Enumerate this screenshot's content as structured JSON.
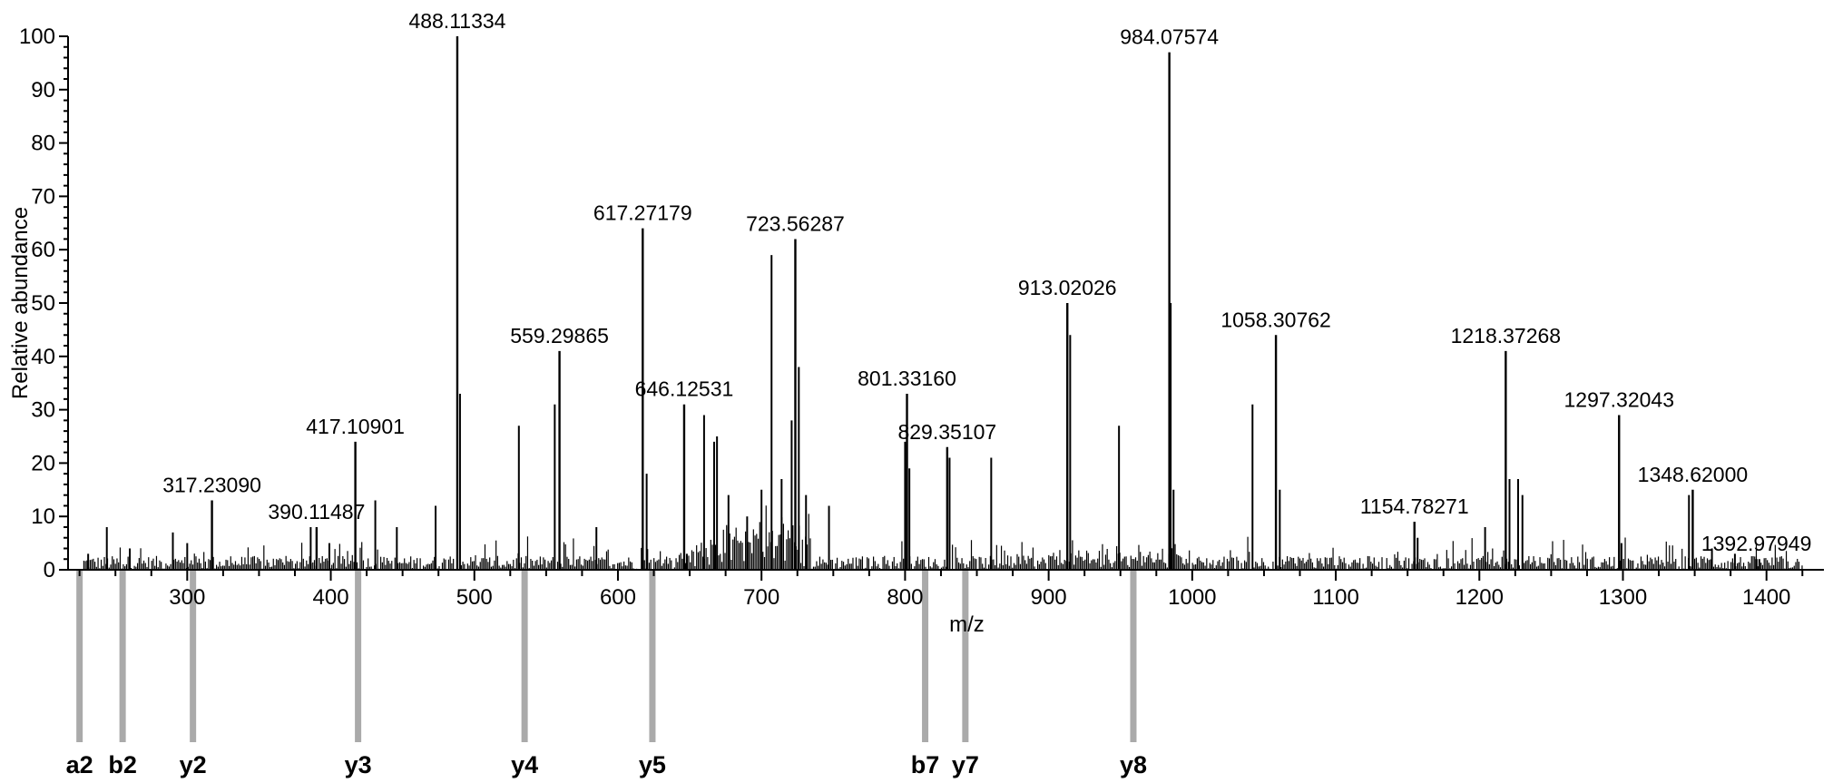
{
  "chart_data": {
    "type": "bar",
    "title": "",
    "xlabel": "m/z",
    "ylabel": "Relative abundance",
    "xlim": [
      217,
      1440
    ],
    "ylim": [
      0,
      100
    ],
    "xticks": [
      300,
      400,
      500,
      600,
      700,
      800,
      900,
      1000,
      1100,
      1200,
      1300,
      1400
    ],
    "yticks": [
      0,
      10,
      20,
      30,
      40,
      50,
      60,
      70,
      80,
      90,
      100
    ],
    "line_color": "#000000",
    "ion_marker_color": "#aaaaaa",
    "labeled_peaks": [
      {
        "mz": 317.2309,
        "label": "317.23090",
        "intensity": 13
      },
      {
        "mz": 390.11487,
        "label": "390.11487",
        "intensity": 8
      },
      {
        "mz": 417.10901,
        "label": "417.10901",
        "intensity": 24
      },
      {
        "mz": 488.11334,
        "label": "488.11334",
        "intensity": 100
      },
      {
        "mz": 559.29865,
        "label": "559.29865",
        "intensity": 41
      },
      {
        "mz": 617.27179,
        "label": "617.27179",
        "intensity": 64
      },
      {
        "mz": 646.12531,
        "label": "646.12531",
        "intensity": 31
      },
      {
        "mz": 723.56287,
        "label": "723.56287",
        "intensity": 62
      },
      {
        "mz": 801.3316,
        "label": "801.33160",
        "intensity": 33
      },
      {
        "mz": 829.35107,
        "label": "829.35107",
        "intensity": 23
      },
      {
        "mz": 913.02026,
        "label": "913.02026",
        "intensity": 50
      },
      {
        "mz": 984.07574,
        "label": "984.07574",
        "intensity": 97
      },
      {
        "mz": 1058.30762,
        "label": "1058.30762",
        "intensity": 44
      },
      {
        "mz": 1154.78271,
        "label": "1154.78271",
        "intensity": 9
      },
      {
        "mz": 1218.37268,
        "label": "1218.37268",
        "intensity": 41
      },
      {
        "mz": 1297.32043,
        "label": "1297.32043",
        "intensity": 29
      },
      {
        "mz": 1348.62,
        "label": "1348.62000",
        "intensity": 15
      },
      {
        "mz": 1392.97949,
        "label": "1392.97949",
        "intensity": 2
      }
    ],
    "peaks": [
      [
        244,
        8
      ],
      [
        231,
        3
      ],
      [
        260,
        4
      ],
      [
        290,
        7
      ],
      [
        300,
        5
      ],
      [
        386,
        8
      ],
      [
        399,
        5
      ],
      [
        431,
        13
      ],
      [
        446,
        8
      ],
      [
        473,
        12
      ],
      [
        490,
        33
      ],
      [
        531,
        27
      ],
      [
        556,
        31
      ],
      [
        585,
        8
      ],
      [
        620,
        18
      ],
      [
        648,
        3
      ],
      [
        660,
        29
      ],
      [
        667,
        24
      ],
      [
        669,
        25
      ],
      [
        677,
        14
      ],
      [
        690,
        10
      ],
      [
        700,
        15
      ],
      [
        707,
        59
      ],
      [
        714,
        17
      ],
      [
        721,
        28
      ],
      [
        726,
        38
      ],
      [
        731,
        14
      ],
      [
        747,
        12
      ],
      [
        800,
        24
      ],
      [
        803,
        19
      ],
      [
        831,
        21
      ],
      [
        860,
        21
      ],
      [
        915,
        44
      ],
      [
        949,
        27
      ],
      [
        985,
        50
      ],
      [
        987,
        15
      ],
      [
        1042,
        31
      ],
      [
        1061,
        15
      ],
      [
        1157,
        6
      ],
      [
        1204,
        8
      ],
      [
        1221,
        17
      ],
      [
        1227,
        17
      ],
      [
        1230,
        14
      ],
      [
        1299,
        5
      ],
      [
        1346,
        14
      ],
      [
        1362,
        4
      ],
      [
        1378,
        3
      ],
      [
        1395,
        2
      ]
    ],
    "fragment_ions": [
      {
        "label": "a2",
        "mz": 225
      },
      {
        "label": "b2",
        "mz": 255
      },
      {
        "label": "y2",
        "mz": 304
      },
      {
        "label": "y3",
        "mz": 419
      },
      {
        "label": "y4",
        "mz": 535
      },
      {
        "label": "y5",
        "mz": 624
      },
      {
        "label": "b7",
        "mz": 814
      },
      {
        "label": "y7",
        "mz": 842
      },
      {
        "label": "y8",
        "mz": 959
      }
    ]
  }
}
